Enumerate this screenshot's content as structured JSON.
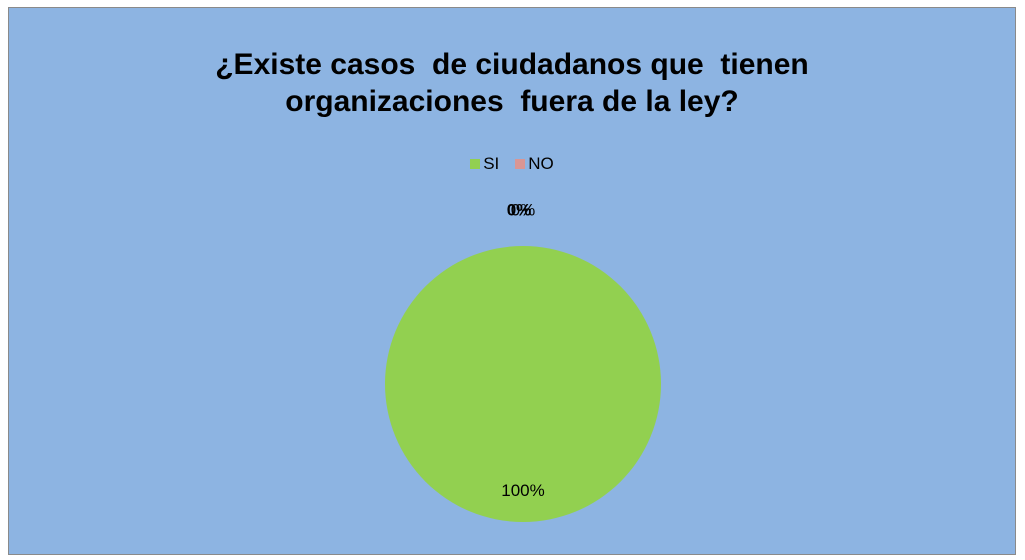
{
  "chart_data": {
    "type": "pie",
    "title_lines": [
      "¿Existe casos  de ciudadanos que  tienen",
      "organizaciones  fuera de la ley?"
    ],
    "categories": [
      "SI",
      "NO"
    ],
    "values": [
      100,
      0
    ],
    "data_labels": [
      "100%",
      "0%"
    ],
    "colors": [
      "#92d050",
      "#d99694"
    ],
    "background": "#8db4e2",
    "legend_position": "top"
  }
}
